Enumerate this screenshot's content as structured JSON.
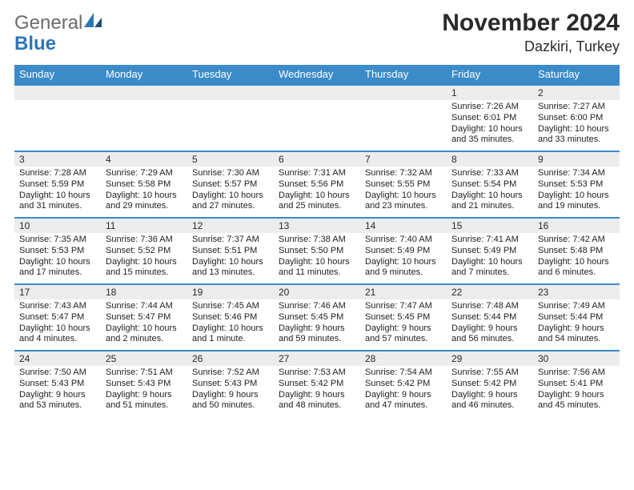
{
  "brand": {
    "word1": "General",
    "word2": "Blue"
  },
  "title": "November 2024",
  "location": "Dazkiri, Turkey",
  "colors": {
    "header_bg": "#3b8bc9",
    "header_fg": "#ffffff",
    "daynum_bg": "#ececec",
    "row_border": "#3b8bc9",
    "brand_gray": "#6c6c6c",
    "brand_blue": "#2e75b6"
  },
  "typography": {
    "title_fontsize": 30,
    "location_fontsize": 18,
    "dayheader_fontsize": 13,
    "daynum_fontsize": 12,
    "detail_fontsize": 11
  },
  "day_headers": [
    "Sunday",
    "Monday",
    "Tuesday",
    "Wednesday",
    "Thursday",
    "Friday",
    "Saturday"
  ],
  "weeks": [
    [
      {
        "num": "",
        "lines": []
      },
      {
        "num": "",
        "lines": []
      },
      {
        "num": "",
        "lines": []
      },
      {
        "num": "",
        "lines": []
      },
      {
        "num": "",
        "lines": []
      },
      {
        "num": "1",
        "lines": [
          "Sunrise: 7:26 AM",
          "Sunset: 6:01 PM",
          "Daylight: 10 hours and 35 minutes."
        ]
      },
      {
        "num": "2",
        "lines": [
          "Sunrise: 7:27 AM",
          "Sunset: 6:00 PM",
          "Daylight: 10 hours and 33 minutes."
        ]
      }
    ],
    [
      {
        "num": "3",
        "lines": [
          "Sunrise: 7:28 AM",
          "Sunset: 5:59 PM",
          "Daylight: 10 hours and 31 minutes."
        ]
      },
      {
        "num": "4",
        "lines": [
          "Sunrise: 7:29 AM",
          "Sunset: 5:58 PM",
          "Daylight: 10 hours and 29 minutes."
        ]
      },
      {
        "num": "5",
        "lines": [
          "Sunrise: 7:30 AM",
          "Sunset: 5:57 PM",
          "Daylight: 10 hours and 27 minutes."
        ]
      },
      {
        "num": "6",
        "lines": [
          "Sunrise: 7:31 AM",
          "Sunset: 5:56 PM",
          "Daylight: 10 hours and 25 minutes."
        ]
      },
      {
        "num": "7",
        "lines": [
          "Sunrise: 7:32 AM",
          "Sunset: 5:55 PM",
          "Daylight: 10 hours and 23 minutes."
        ]
      },
      {
        "num": "8",
        "lines": [
          "Sunrise: 7:33 AM",
          "Sunset: 5:54 PM",
          "Daylight: 10 hours and 21 minutes."
        ]
      },
      {
        "num": "9",
        "lines": [
          "Sunrise: 7:34 AM",
          "Sunset: 5:53 PM",
          "Daylight: 10 hours and 19 minutes."
        ]
      }
    ],
    [
      {
        "num": "10",
        "lines": [
          "Sunrise: 7:35 AM",
          "Sunset: 5:53 PM",
          "Daylight: 10 hours and 17 minutes."
        ]
      },
      {
        "num": "11",
        "lines": [
          "Sunrise: 7:36 AM",
          "Sunset: 5:52 PM",
          "Daylight: 10 hours and 15 minutes."
        ]
      },
      {
        "num": "12",
        "lines": [
          "Sunrise: 7:37 AM",
          "Sunset: 5:51 PM",
          "Daylight: 10 hours and 13 minutes."
        ]
      },
      {
        "num": "13",
        "lines": [
          "Sunrise: 7:38 AM",
          "Sunset: 5:50 PM",
          "Daylight: 10 hours and 11 minutes."
        ]
      },
      {
        "num": "14",
        "lines": [
          "Sunrise: 7:40 AM",
          "Sunset: 5:49 PM",
          "Daylight: 10 hours and 9 minutes."
        ]
      },
      {
        "num": "15",
        "lines": [
          "Sunrise: 7:41 AM",
          "Sunset: 5:49 PM",
          "Daylight: 10 hours and 7 minutes."
        ]
      },
      {
        "num": "16",
        "lines": [
          "Sunrise: 7:42 AM",
          "Sunset: 5:48 PM",
          "Daylight: 10 hours and 6 minutes."
        ]
      }
    ],
    [
      {
        "num": "17",
        "lines": [
          "Sunrise: 7:43 AM",
          "Sunset: 5:47 PM",
          "Daylight: 10 hours and 4 minutes."
        ]
      },
      {
        "num": "18",
        "lines": [
          "Sunrise: 7:44 AM",
          "Sunset: 5:47 PM",
          "Daylight: 10 hours and 2 minutes."
        ]
      },
      {
        "num": "19",
        "lines": [
          "Sunrise: 7:45 AM",
          "Sunset: 5:46 PM",
          "Daylight: 10 hours and 1 minute."
        ]
      },
      {
        "num": "20",
        "lines": [
          "Sunrise: 7:46 AM",
          "Sunset: 5:45 PM",
          "Daylight: 9 hours and 59 minutes."
        ]
      },
      {
        "num": "21",
        "lines": [
          "Sunrise: 7:47 AM",
          "Sunset: 5:45 PM",
          "Daylight: 9 hours and 57 minutes."
        ]
      },
      {
        "num": "22",
        "lines": [
          "Sunrise: 7:48 AM",
          "Sunset: 5:44 PM",
          "Daylight: 9 hours and 56 minutes."
        ]
      },
      {
        "num": "23",
        "lines": [
          "Sunrise: 7:49 AM",
          "Sunset: 5:44 PM",
          "Daylight: 9 hours and 54 minutes."
        ]
      }
    ],
    [
      {
        "num": "24",
        "lines": [
          "Sunrise: 7:50 AM",
          "Sunset: 5:43 PM",
          "Daylight: 9 hours and 53 minutes."
        ]
      },
      {
        "num": "25",
        "lines": [
          "Sunrise: 7:51 AM",
          "Sunset: 5:43 PM",
          "Daylight: 9 hours and 51 minutes."
        ]
      },
      {
        "num": "26",
        "lines": [
          "Sunrise: 7:52 AM",
          "Sunset: 5:43 PM",
          "Daylight: 9 hours and 50 minutes."
        ]
      },
      {
        "num": "27",
        "lines": [
          "Sunrise: 7:53 AM",
          "Sunset: 5:42 PM",
          "Daylight: 9 hours and 48 minutes."
        ]
      },
      {
        "num": "28",
        "lines": [
          "Sunrise: 7:54 AM",
          "Sunset: 5:42 PM",
          "Daylight: 9 hours and 47 minutes."
        ]
      },
      {
        "num": "29",
        "lines": [
          "Sunrise: 7:55 AM",
          "Sunset: 5:42 PM",
          "Daylight: 9 hours and 46 minutes."
        ]
      },
      {
        "num": "30",
        "lines": [
          "Sunrise: 7:56 AM",
          "Sunset: 5:41 PM",
          "Daylight: 9 hours and 45 minutes."
        ]
      }
    ]
  ]
}
